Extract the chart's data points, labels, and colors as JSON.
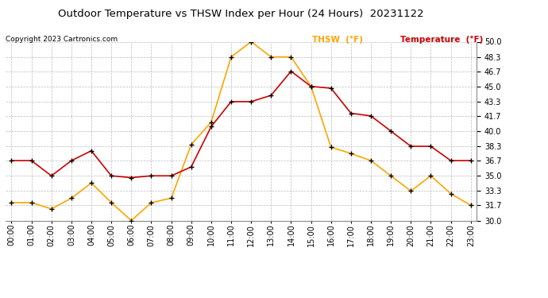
{
  "title": "Outdoor Temperature vs THSW Index per Hour (24 Hours)  20231122",
  "copyright": "Copyright 2023 Cartronics.com",
  "legend_thsw": "THSW  (°F)",
  "legend_temp": "Temperature  (°F)",
  "hours": [
    0,
    1,
    2,
    3,
    4,
    5,
    6,
    7,
    8,
    9,
    10,
    11,
    12,
    13,
    14,
    15,
    16,
    17,
    18,
    19,
    20,
    21,
    22,
    23
  ],
  "temperature": [
    36.7,
    36.7,
    35.0,
    36.7,
    37.8,
    35.0,
    34.8,
    35.0,
    35.0,
    36.0,
    40.5,
    43.3,
    43.3,
    44.0,
    46.7,
    45.0,
    44.8,
    42.0,
    41.7,
    40.0,
    38.3,
    38.3,
    36.7,
    36.7
  ],
  "thsw": [
    32.0,
    32.0,
    31.3,
    32.5,
    34.2,
    32.0,
    30.0,
    32.0,
    32.5,
    38.5,
    41.0,
    48.3,
    50.0,
    48.3,
    48.3,
    45.0,
    38.2,
    37.5,
    36.7,
    35.0,
    33.3,
    35.0,
    33.0,
    31.7
  ],
  "ylim": [
    30.0,
    50.0
  ],
  "yticks": [
    30.0,
    31.7,
    33.3,
    35.0,
    36.7,
    38.3,
    40.0,
    41.7,
    43.3,
    45.0,
    46.7,
    48.3,
    50.0
  ],
  "thsw_color": "#FFA500",
  "temp_color": "#CC0000",
  "marker_color": "#000000",
  "grid_color": "#BBBBBB",
  "bg_color": "#FFFFFF",
  "title_color": "#000000",
  "copyright_color": "#000000",
  "legend_thsw_color": "#FFA500",
  "legend_temp_color": "#CC0000"
}
